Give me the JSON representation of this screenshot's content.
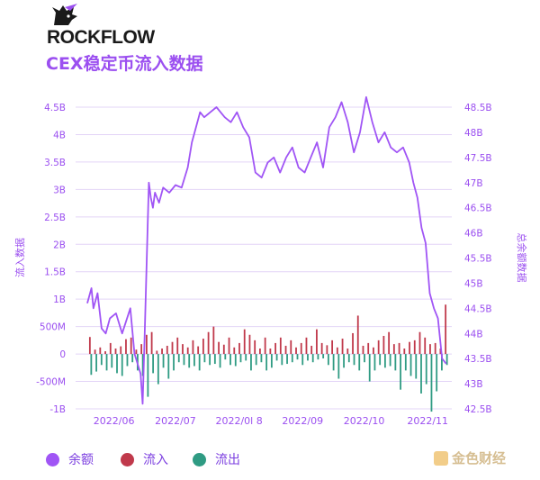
{
  "brand": {
    "name": "ROCKFLOW"
  },
  "title": "CEX稳定币流入数据",
  "watermark": "金色财经",
  "colors": {
    "balance": "#a055f5",
    "inflow": "#c0394b",
    "outflow": "#2f9b83",
    "grid": "#e3d4f7",
    "axis_text": "#9b4ff0"
  },
  "legend": [
    {
      "key": "balance",
      "label": "余额",
      "color": "#a055f5"
    },
    {
      "key": "inflow",
      "label": "流入",
      "color": "#c0394b"
    },
    {
      "key": "outflow",
      "label": "流出",
      "color": "#2f9b83"
    }
  ],
  "chart_data": {
    "type": "bar+line",
    "left_axis": {
      "label": "流入数据",
      "ticks": [
        "-1B",
        "-500M",
        "0",
        "500M",
        "1B",
        "1.5B",
        "2B",
        "2.5B",
        "3B",
        "3.5B",
        "4B",
        "4.5B"
      ],
      "min": -1,
      "max": 4.5,
      "unit": "B"
    },
    "right_axis": {
      "label": "总余额数据",
      "ticks": [
        "42.5B",
        "43B",
        "43.5B",
        "44B",
        "44.5B",
        "45B",
        "45.5B",
        "46B",
        "46.5B",
        "47B",
        "47.5B",
        "48B",
        "48.5B"
      ],
      "min": 42.5,
      "max": 48.5,
      "unit": "B"
    },
    "x_ticks": [
      "2022/06",
      "2022/07",
      "2022/0l 8",
      "2022/09",
      "2022/10",
      "2022/11"
    ],
    "x_range": [
      "2022-05-26",
      "2022-11-18"
    ],
    "x_tick_dates": [
      "2022-06-08",
      "2022-07-08",
      "2022-08-08",
      "2022-09-08",
      "2022-10-08",
      "2022-11-08"
    ],
    "series": [
      {
        "name": "余额",
        "kind": "line",
        "axis": "right",
        "dates": [
          "2022-05-26",
          "2022-05-28",
          "2022-05-29",
          "2022-05-31",
          "2022-06-02",
          "2022-06-04",
          "2022-06-06",
          "2022-06-09",
          "2022-06-12",
          "2022-06-16",
          "2022-06-18",
          "2022-06-21",
          "2022-06-22",
          "2022-06-23",
          "2022-06-25",
          "2022-06-26",
          "2022-06-27",
          "2022-06-28",
          "2022-06-30",
          "2022-07-02",
          "2022-07-05",
          "2022-07-08",
          "2022-07-11",
          "2022-07-14",
          "2022-07-16",
          "2022-07-18",
          "2022-07-20",
          "2022-07-22",
          "2022-07-25",
          "2022-07-28",
          "2022-08-01",
          "2022-08-04",
          "2022-08-07",
          "2022-08-10",
          "2022-08-13",
          "2022-08-16",
          "2022-08-19",
          "2022-08-22",
          "2022-08-25",
          "2022-08-28",
          "2022-08-31",
          "2022-09-03",
          "2022-09-06",
          "2022-09-09",
          "2022-09-12",
          "2022-09-15",
          "2022-09-18",
          "2022-09-21",
          "2022-09-24",
          "2022-09-27",
          "2022-09-30",
          "2022-10-03",
          "2022-10-06",
          "2022-10-09",
          "2022-10-12",
          "2022-10-15",
          "2022-10-18",
          "2022-10-21",
          "2022-10-24",
          "2022-10-27",
          "2022-10-30",
          "2022-11-01",
          "2022-11-03",
          "2022-11-05",
          "2022-11-07",
          "2022-11-09",
          "2022-11-11",
          "2022-11-13",
          "2022-11-15",
          "2022-11-17"
        ],
        "values": [
          44.6,
          44.9,
          44.5,
          44.8,
          44.1,
          44.0,
          44.3,
          44.4,
          44.0,
          44.5,
          43.6,
          43.2,
          42.6,
          44.0,
          47.0,
          46.7,
          46.5,
          46.8,
          46.6,
          46.9,
          46.8,
          46.95,
          46.9,
          47.3,
          47.8,
          48.1,
          48.4,
          48.3,
          48.4,
          48.5,
          48.3,
          48.2,
          48.4,
          48.1,
          47.9,
          47.2,
          47.1,
          47.4,
          47.5,
          47.2,
          47.5,
          47.7,
          47.3,
          47.2,
          47.5,
          47.8,
          47.3,
          48.1,
          48.3,
          48.6,
          48.2,
          47.6,
          48.0,
          48.7,
          48.2,
          47.8,
          48.0,
          47.7,
          47.6,
          47.7,
          47.4,
          47.0,
          46.7,
          46.1,
          45.8,
          44.8,
          44.5,
          44.3,
          43.5,
          43.4
        ]
      },
      {
        "name": "流入",
        "kind": "bar",
        "axis": "left",
        "values": [
          0.31,
          0.08,
          0.12,
          0.05,
          0.2,
          0.1,
          0.14,
          0.27,
          0.3,
          0.08,
          0.18,
          0.35,
          0.4,
          0.06,
          0.1,
          0.15,
          0.22,
          0.3,
          0.18,
          0.12,
          0.25,
          0.14,
          0.28,
          0.4,
          0.5,
          0.22,
          0.17,
          0.3,
          0.12,
          0.2,
          0.45,
          0.35,
          0.25,
          0.1,
          0.3,
          0.1,
          0.2,
          0.3,
          0.15,
          0.25,
          0.12,
          0.2,
          0.3,
          0.15,
          0.45,
          0.2,
          0.16,
          0.25,
          0.12,
          0.28,
          0.1,
          0.38,
          0.7,
          0.15,
          0.2,
          0.12,
          0.25,
          0.33,
          0.4,
          0.18,
          0.2,
          0.1,
          0.22,
          0.25,
          0.4,
          0.3,
          0.18,
          0.2,
          0.1,
          0.9
        ]
      },
      {
        "name": "流出",
        "kind": "bar",
        "axis": "left",
        "values": [
          -0.38,
          -0.32,
          -0.2,
          -0.3,
          -0.25,
          -0.35,
          -0.4,
          -0.22,
          -0.15,
          -0.3,
          -0.4,
          -0.78,
          -0.35,
          -0.55,
          -0.25,
          -0.45,
          -0.3,
          -0.15,
          -0.2,
          -0.25,
          -0.22,
          -0.3,
          -0.15,
          -0.2,
          -0.18,
          -0.25,
          -0.1,
          -0.2,
          -0.22,
          -0.15,
          -0.12,
          -0.3,
          -0.2,
          -0.15,
          -0.3,
          -0.25,
          -0.12,
          -0.2,
          -0.18,
          -0.15,
          -0.1,
          -0.2,
          -0.12,
          -0.15,
          -0.1,
          -0.08,
          -0.2,
          -0.3,
          -0.45,
          -0.25,
          -0.15,
          -0.2,
          -0.3,
          -0.15,
          -0.5,
          -0.3,
          -0.2,
          -0.25,
          -0.22,
          -0.3,
          -0.65,
          -0.3,
          -0.4,
          -0.45,
          -0.72,
          -0.55,
          -1.05,
          -0.68,
          -0.3,
          -0.2
        ]
      }
    ]
  }
}
